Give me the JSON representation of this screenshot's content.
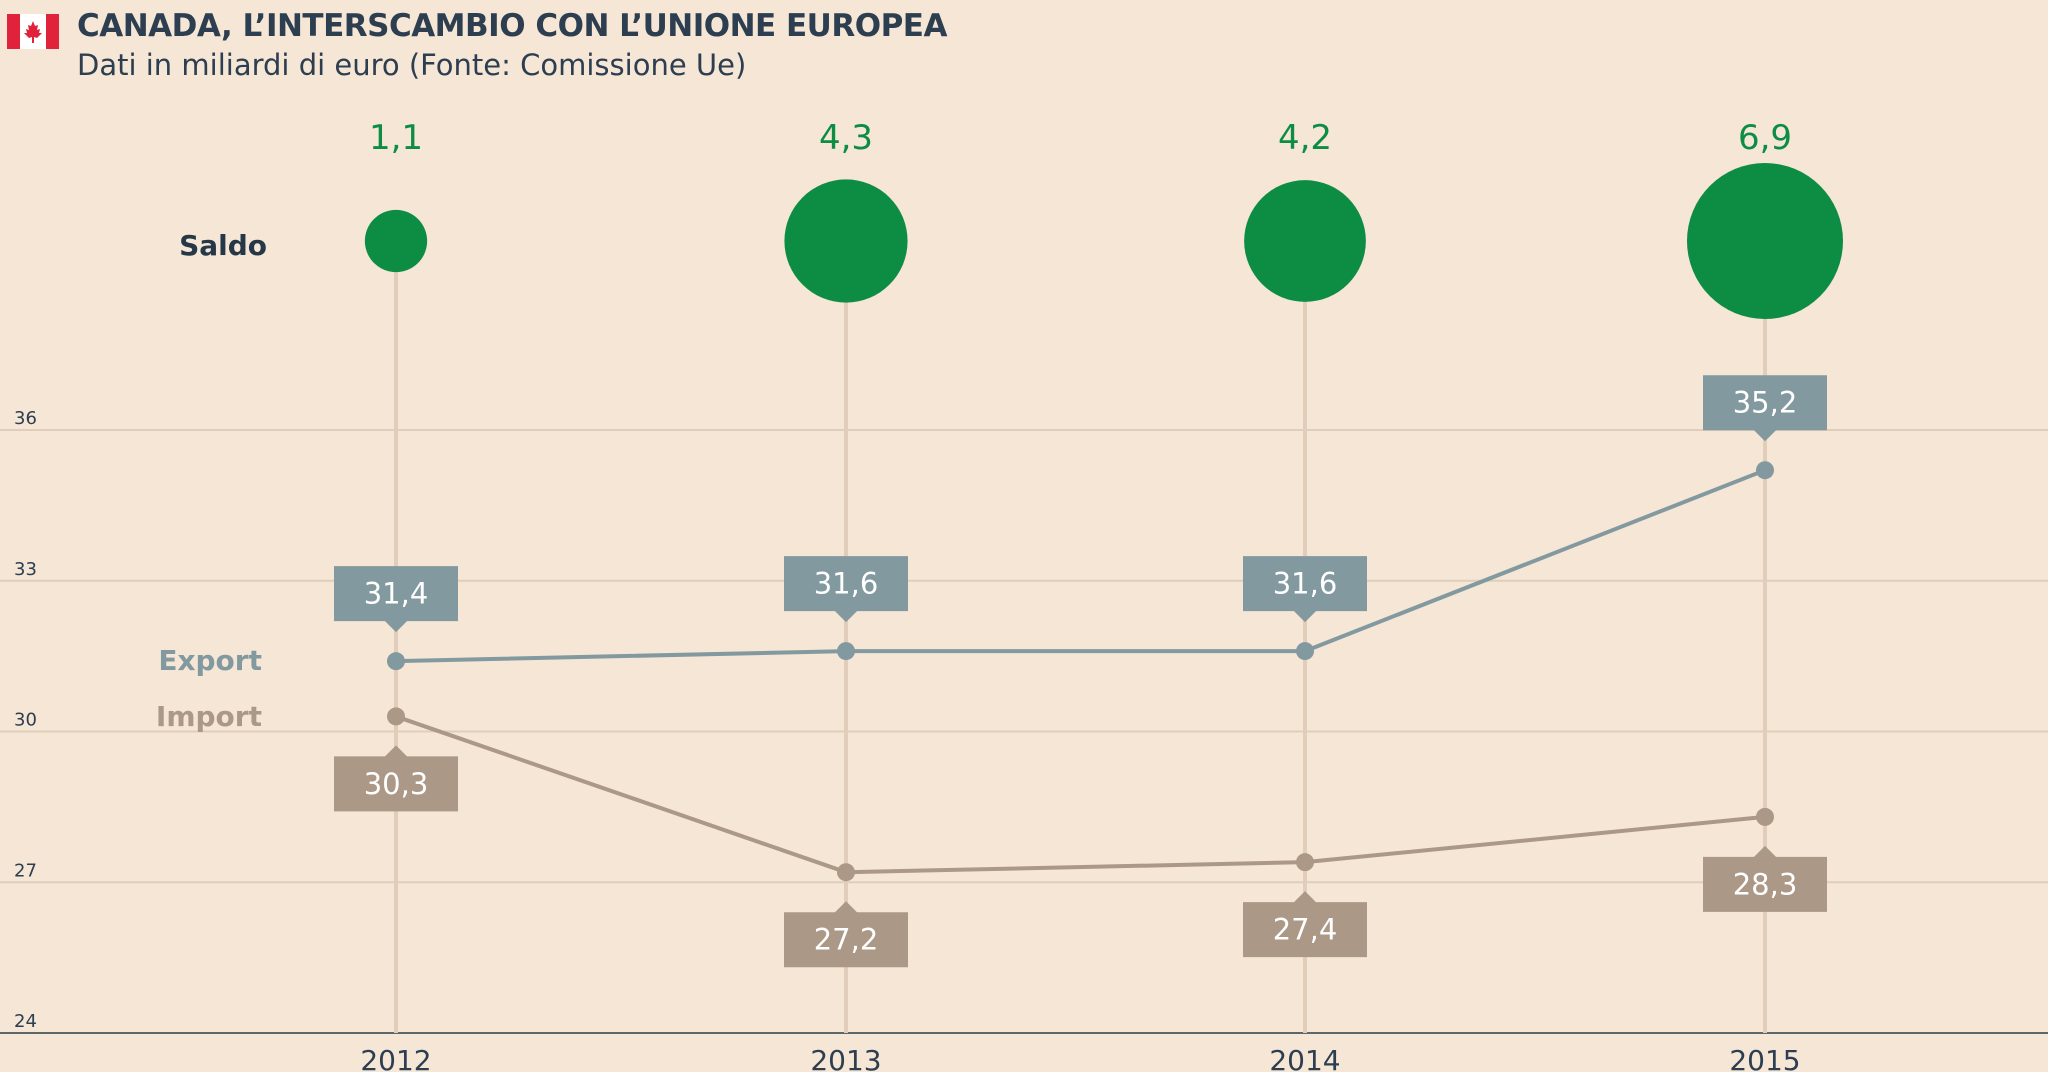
{
  "header": {
    "title": "CANADA, L’INTERSCAMBIO CON L’UNIONE EUROPEA",
    "subtitle": "Dati in miliardi di euro (Fonte: Comissione Ue)"
  },
  "colors": {
    "background": "#f5e6d6",
    "saldo": "#0d8c44",
    "export": "#82999f",
    "import": "#ab9887",
    "grid": "#e0cdbb",
    "stem": "#e2cdbb",
    "flag_red": "#e0233b"
  },
  "chart_data": {
    "type": "line",
    "categories": [
      "2012",
      "2013",
      "2014",
      "2015"
    ],
    "series": [
      {
        "name": "Export",
        "values": [
          31.4,
          31.6,
          31.6,
          35.2
        ],
        "labels": [
          "31,4",
          "31,6",
          "31,6",
          "35,2"
        ]
      },
      {
        "name": "Import",
        "values": [
          30.3,
          27.2,
          27.4,
          28.3
        ],
        "labels": [
          "30,3",
          "27,2",
          "27,4",
          "28,3"
        ]
      }
    ],
    "saldo": {
      "name": "Saldo",
      "values": [
        1.1,
        4.3,
        4.2,
        6.9
      ],
      "labels": [
        "1,1",
        "4,3",
        "4,2",
        "6,9"
      ]
    },
    "ylim": [
      24,
      36
    ],
    "yticks": [
      "24",
      "27",
      "30",
      "33",
      "36"
    ],
    "grid": true
  }
}
